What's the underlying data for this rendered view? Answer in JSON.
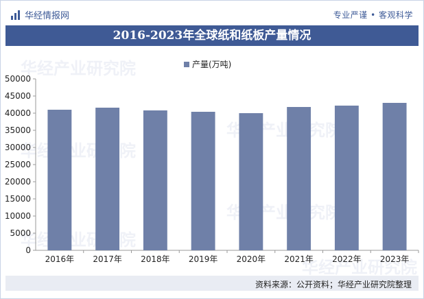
{
  "brand": {
    "logo_text": "华经情报网",
    "slogan": "专业严谨 • 客观科学"
  },
  "watermark": "华经产业研究院",
  "source": "资料来源：公开资料；华经产业研究院整理",
  "colors": {
    "bar": "#6f80a8",
    "title_bg": "#3f5a95",
    "accent": "#3d5a97"
  },
  "chart_data": {
    "type": "bar",
    "title": "2016-2023年全球纸和纸板产量情况",
    "categories": [
      "2016年",
      "2017年",
      "2018年",
      "2019年",
      "2020年",
      "2021年",
      "2022年",
      "2023年"
    ],
    "series": [
      {
        "name": "产量(万吨)",
        "values": [
          41000,
          41600,
          40800,
          40400,
          40000,
          41800,
          42200,
          43000
        ]
      }
    ],
    "ylim": [
      0,
      50000
    ],
    "yticks": [
      0,
      5000,
      10000,
      15000,
      20000,
      25000,
      30000,
      35000,
      40000,
      45000,
      50000
    ],
    "legend": "top-center",
    "grid": false
  }
}
